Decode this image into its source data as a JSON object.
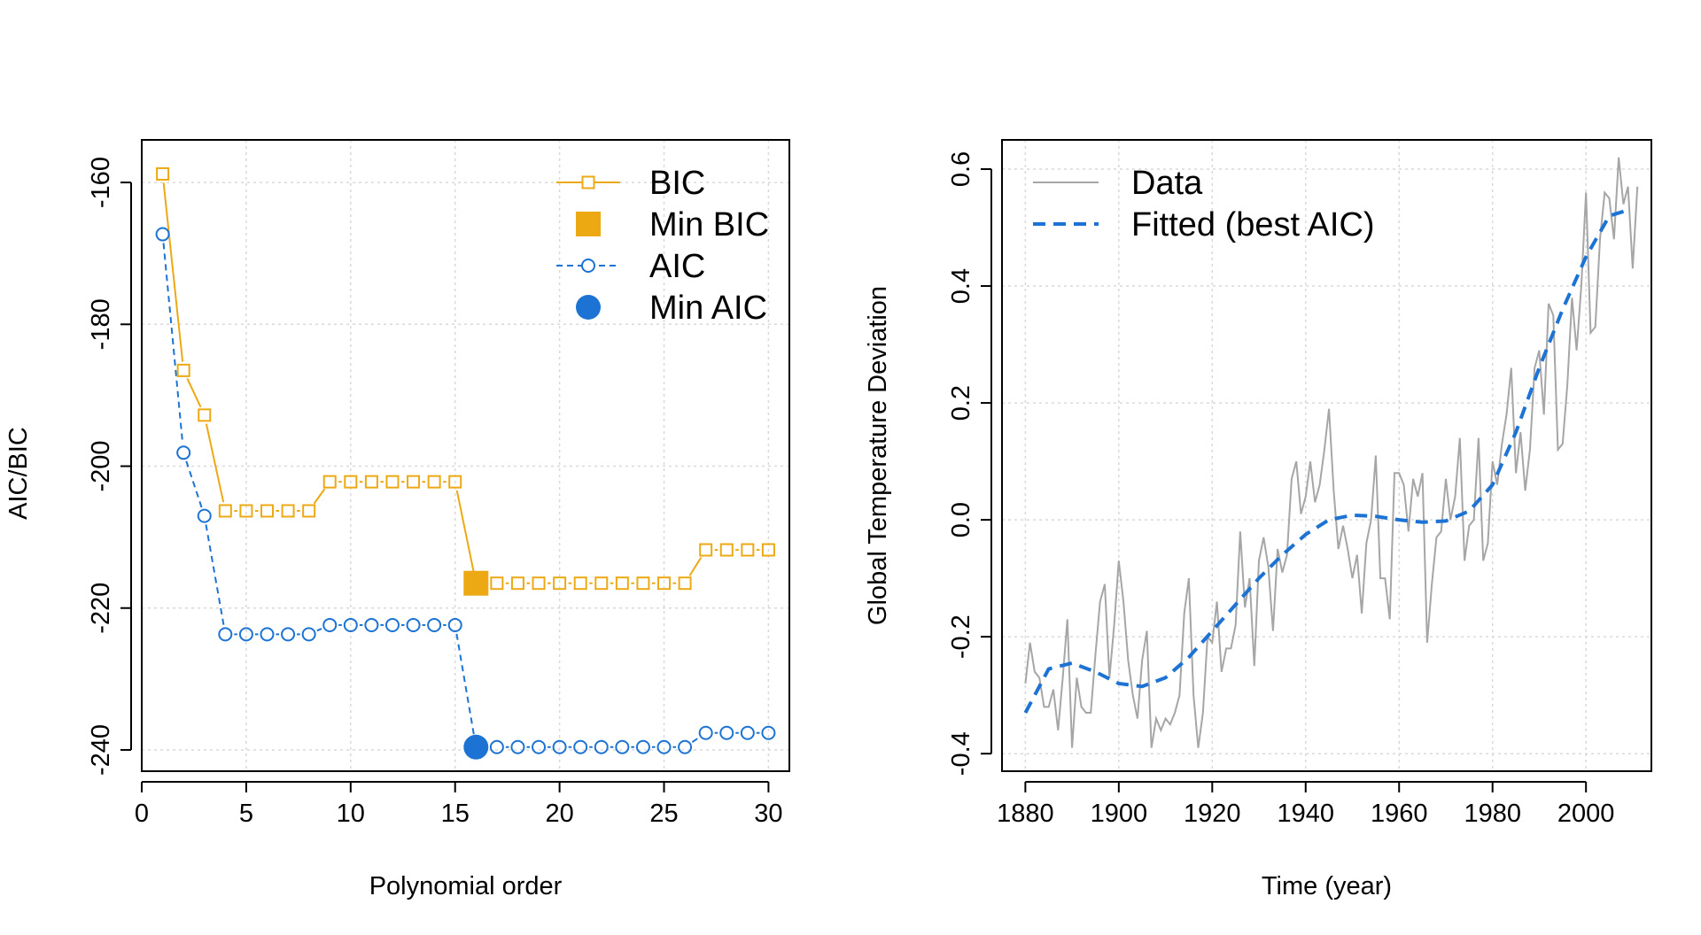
{
  "colors": {
    "bic": "#EDA914",
    "aic": "#1C73D3",
    "data": "#A6A6A6",
    "grid": "#D9D9D9",
    "axis": "#000000"
  },
  "chart_data": [
    {
      "type": "line",
      "xlabel": "Polynomial order",
      "ylabel": "AIC/BIC",
      "xlim": [
        0,
        31
      ],
      "ylim": [
        -243,
        -154
      ],
      "xticks": [
        0,
        5,
        10,
        15,
        20,
        25,
        30
      ],
      "xtick_labels": [
        "0",
        "5",
        "10",
        "15",
        "20",
        "25",
        "30"
      ],
      "yticks": [
        -160,
        -180,
        -200,
        -220,
        -240
      ],
      "ytick_labels": [
        "-160",
        "-180",
        "-200",
        "-220",
        "-240"
      ],
      "grid": true,
      "legend_position": "top-right",
      "legend": [
        "BIC",
        "Min BIC",
        "AIC",
        "Min AIC"
      ],
      "x": [
        1,
        2,
        3,
        4,
        5,
        6,
        7,
        8,
        9,
        10,
        11,
        12,
        13,
        14,
        15,
        16,
        17,
        18,
        19,
        20,
        21,
        22,
        23,
        24,
        25,
        26,
        27,
        28,
        29,
        30
      ],
      "series": [
        {
          "name": "BIC",
          "marker": "open-square",
          "line": "solid",
          "values": [
            -158.8,
            -186.5,
            -192.8,
            -206.3,
            -206.3,
            -206.3,
            -206.3,
            -206.3,
            -202.2,
            -202.2,
            -202.2,
            -202.2,
            -202.2,
            -202.2,
            -202.2,
            -216.5,
            -216.5,
            -216.5,
            -216.5,
            -216.5,
            -216.5,
            -216.5,
            -216.5,
            -216.5,
            -216.5,
            -216.5,
            -211.8,
            -211.8,
            -211.8,
            -211.8
          ]
        },
        {
          "name": "AIC",
          "marker": "open-circle",
          "line": "dashed",
          "values": [
            -167.3,
            -198.1,
            -207.0,
            -223.7,
            -223.7,
            -223.7,
            -223.7,
            -223.7,
            -222.4,
            -222.4,
            -222.4,
            -222.4,
            -222.4,
            -222.4,
            -222.4,
            -239.6,
            -239.6,
            -239.6,
            -239.6,
            -239.6,
            -239.6,
            -239.6,
            -239.6,
            -239.6,
            -239.6,
            -239.6,
            -237.6,
            -237.6,
            -237.6,
            -237.6
          ]
        }
      ],
      "highlights": [
        {
          "name": "Min BIC",
          "marker": "filled-square",
          "x": 16,
          "y": -216.5
        },
        {
          "name": "Min AIC",
          "marker": "filled-circle",
          "x": 16,
          "y": -239.6
        }
      ]
    },
    {
      "type": "line",
      "xlabel": "Time (year)",
      "ylabel": "Global Temperature Deviation",
      "xlim": [
        1875,
        2014
      ],
      "ylim": [
        -0.43,
        0.65
      ],
      "xticks": [
        1880,
        1900,
        1920,
        1940,
        1960,
        1980,
        2000
      ],
      "xtick_labels": [
        "1880",
        "1900",
        "1920",
        "1940",
        "1960",
        "1980",
        "2000"
      ],
      "yticks": [
        0.6,
        0.4,
        0.2,
        0.0,
        -0.2,
        -0.4
      ],
      "ytick_labels": [
        "0.6",
        "0.4",
        "0.2",
        "0.0",
        "-0.2",
        "-0.4"
      ],
      "grid": true,
      "legend_position": "top-left",
      "legend": [
        "Data",
        "Fitted (best AIC)"
      ],
      "series": [
        {
          "name": "Data",
          "line": "solid",
          "x_start": 1880,
          "x_step": 1,
          "values": [
            -0.28,
            -0.21,
            -0.26,
            -0.27,
            -0.32,
            -0.32,
            -0.29,
            -0.36,
            -0.27,
            -0.17,
            -0.39,
            -0.27,
            -0.32,
            -0.33,
            -0.33,
            -0.23,
            -0.14,
            -0.11,
            -0.27,
            -0.18,
            -0.07,
            -0.14,
            -0.24,
            -0.3,
            -0.34,
            -0.24,
            -0.19,
            -0.39,
            -0.34,
            -0.36,
            -0.34,
            -0.35,
            -0.33,
            -0.3,
            -0.16,
            -0.1,
            -0.3,
            -0.39,
            -0.33,
            -0.2,
            -0.21,
            -0.14,
            -0.26,
            -0.22,
            -0.22,
            -0.18,
            -0.02,
            -0.15,
            -0.1,
            -0.25,
            -0.07,
            -0.03,
            -0.08,
            -0.19,
            -0.05,
            -0.09,
            -0.06,
            0.07,
            0.1,
            0.01,
            0.04,
            0.1,
            0.03,
            0.06,
            0.12,
            0.19,
            0.05,
            -0.05,
            -0.01,
            -0.05,
            -0.1,
            -0.06,
            -0.16,
            -0.04,
            0.0,
            0.11,
            -0.1,
            -0.1,
            -0.17,
            0.08,
            0.08,
            0.06,
            -0.02,
            0.07,
            0.04,
            0.08,
            -0.21,
            -0.11,
            -0.03,
            -0.02,
            0.07,
            0.0,
            0.04,
            0.14,
            -0.07,
            -0.01,
            0.0,
            0.14,
            -0.07,
            -0.04,
            0.1,
            0.06,
            0.13,
            0.18,
            0.26,
            0.08,
            0.15,
            0.05,
            0.12,
            0.26,
            0.29,
            0.18,
            0.37,
            0.35,
            0.12,
            0.13,
            0.23,
            0.38,
            0.29,
            0.4,
            0.56,
            0.32,
            0.33,
            0.48,
            0.56,
            0.55,
            0.48,
            0.62,
            0.54,
            0.57,
            0.43,
            0.57
          ]
        },
        {
          "name": "Fitted (best AIC)",
          "line": "dashed",
          "x": [
            1880,
            1885,
            1890,
            1895,
            1900,
            1905,
            1910,
            1915,
            1920,
            1925,
            1930,
            1935,
            1940,
            1945,
            1950,
            1955,
            1960,
            1965,
            1970,
            1975,
            1980,
            1985,
            1990,
            1995,
            2000,
            2005,
            2009
          ],
          "values": [
            -0.33,
            -0.255,
            -0.245,
            -0.26,
            -0.28,
            -0.285,
            -0.27,
            -0.235,
            -0.19,
            -0.145,
            -0.1,
            -0.06,
            -0.025,
            0.0,
            0.008,
            0.006,
            0.0,
            -0.004,
            -0.002,
            0.015,
            0.06,
            0.15,
            0.26,
            0.36,
            0.45,
            0.52,
            0.53
          ]
        }
      ]
    }
  ]
}
